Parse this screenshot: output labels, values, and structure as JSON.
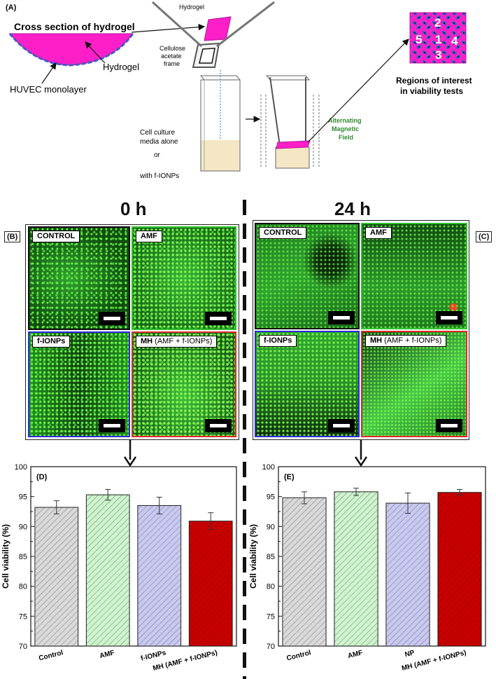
{
  "panel_a": {
    "letter": "(A)",
    "cross_section_title": "Cross section of hydrogel",
    "hydrogel_label": "Hydrogel",
    "huvec_label": "HUVEC monolayer",
    "top_hydrogel_label": "Hydrogel",
    "frame_label_1": "Cellulose",
    "frame_label_2": "acetate",
    "frame_label_3": "frame",
    "media_label_1": "Cell culture",
    "media_label_2": "media alone",
    "media_or": "or",
    "media_label_3": "with f-IONPs",
    "amf_label_1": "Alternating",
    "amf_label_2": "Magnetic",
    "amf_label_3": "Field",
    "roi_label_1": "Regions of interest",
    "roi_label_2": "in viability tests",
    "roi_numbers": [
      "2",
      "5",
      "1",
      "4",
      "3"
    ],
    "colors": {
      "hydrogel": "#ff1fc8",
      "cells": "#3a5bc8",
      "media": "#f5e6c6",
      "amf_text": "#2f8a2f"
    }
  },
  "time_0": "0 h",
  "time_24": "24 h",
  "panel_b": {
    "letter": "(B)"
  },
  "panel_c": {
    "letter": "(C)"
  },
  "micro_tags": {
    "control": "CONTROL",
    "amf": "AMF",
    "fionps": "f-IONPs",
    "mh_bold": "MH",
    "mh_rest": " (AMF + f-IONPs)"
  },
  "micro_borders": {
    "control": "#111111",
    "amf": "#2ec12e",
    "fionps": "#2b2bd8",
    "mh": "#e02a2a"
  },
  "chart_data": [
    {
      "panel": "(D)",
      "type": "bar",
      "categories": [
        "Control",
        "AMF",
        "f-IONPs",
        "MH (AMF + f-IONPs)"
      ],
      "values": [
        93.2,
        95.3,
        93.5,
        90.9
      ],
      "errors": [
        1.1,
        0.9,
        1.4,
        1.4
      ],
      "colors": [
        "#d9d9d9",
        "#ccf5cc",
        "#c8c8f2",
        "#c80000"
      ],
      "ylabel": "Cell viability (%)",
      "xlabel": "",
      "ylim": [
        70,
        100
      ],
      "yticks": [
        "70",
        "75",
        "80",
        "85",
        "90",
        "95",
        "100"
      ],
      "grid": false
    },
    {
      "panel": "(E)",
      "type": "bar",
      "categories": [
        "Control",
        "AMF",
        "NP",
        "MH (AMF + f-IONPs)"
      ],
      "values": [
        94.8,
        95.8,
        93.9,
        95.7
      ],
      "errors": [
        1.0,
        0.6,
        1.7,
        0.5
      ],
      "colors": [
        "#d9d9d9",
        "#ccf5cc",
        "#c8c8f2",
        "#c80000"
      ],
      "ylabel": "Cell viability (%)",
      "xlabel": "",
      "ylim": [
        70,
        100
      ],
      "yticks": [
        "70",
        "75",
        "80",
        "85",
        "90",
        "95",
        "100"
      ],
      "grid": false
    }
  ]
}
